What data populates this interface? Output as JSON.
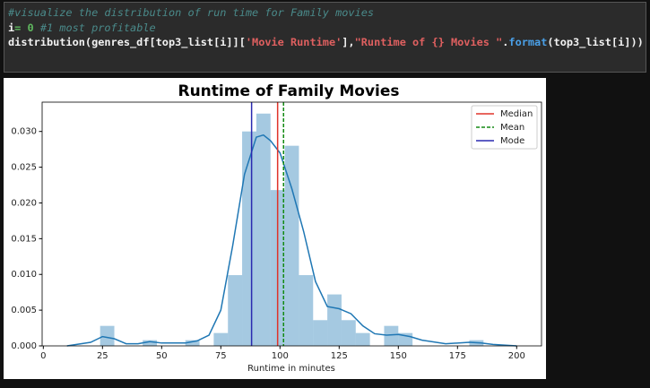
{
  "code": {
    "lines": [
      [
        "#visualize the distribution of run time for Family movies"
      ],
      [
        "i",
        "= 0",
        " #1 most profitable"
      ],
      [
        "distribution(genres_df[top3_list[i]][",
        "'Movie Runtime'",
        "],",
        "\"Runtime of {} Movies \"",
        ".",
        "format",
        "(top3_list[i]))"
      ]
    ]
  },
  "chart_data": {
    "type": "histogram",
    "title": "Runtime of Family Movies",
    "xlabel": "Runtime in minutes",
    "xlim": [
      -0.5,
      210.5
    ],
    "ylim": [
      0,
      0.0341
    ],
    "xticks": [
      0,
      25,
      50,
      75,
      100,
      125,
      150,
      175,
      200
    ],
    "yticks": [
      {
        "value": 0,
        "label": "0.000"
      },
      {
        "value": 0.005,
        "label": "0.005"
      },
      {
        "value": 0.01,
        "label": "0.010"
      },
      {
        "value": 0.015,
        "label": "0.015"
      },
      {
        "value": 0.02,
        "label": "0.020"
      },
      {
        "value": 0.025,
        "label": "0.025"
      },
      {
        "value": 0.03,
        "label": "0.030"
      }
    ],
    "histogram": {
      "color": "#1f77b4",
      "bins": [
        24,
        30,
        36,
        42,
        48,
        54,
        60,
        66,
        72,
        78,
        84,
        90,
        96,
        102,
        108,
        114,
        120,
        126,
        132,
        138,
        144,
        150,
        156,
        162,
        168,
        174,
        180,
        186
      ],
      "values": [
        0.0028,
        0,
        0,
        0.0008,
        0,
        0,
        0.0008,
        0,
        0.0018,
        0.0099,
        0.03,
        0.0325,
        0.0218,
        0.028,
        0.0099,
        0.0036,
        0.0072,
        0.0036,
        0.0018,
        0,
        0.0028,
        0.0018,
        0,
        0,
        0,
        0,
        0.0008
      ]
    },
    "kde": {
      "color": "#1f77b4",
      "x": [
        10,
        20,
        25,
        30,
        35,
        40,
        45,
        50,
        60,
        65,
        70,
        75,
        80,
        85,
        90,
        93,
        96,
        100,
        105,
        110,
        115,
        120,
        125,
        130,
        135,
        140,
        145,
        150,
        155,
        160,
        170,
        180,
        185,
        190,
        200
      ],
      "values": [
        0,
        0.0005,
        0.0013,
        0.001,
        0.0003,
        0.0003,
        0.0006,
        0.0004,
        0.0004,
        0.0007,
        0.0015,
        0.005,
        0.014,
        0.024,
        0.0292,
        0.0295,
        0.0287,
        0.027,
        0.022,
        0.016,
        0.009,
        0.0055,
        0.0052,
        0.0045,
        0.0028,
        0.0017,
        0.0015,
        0.0016,
        0.0013,
        0.0008,
        0.0003,
        0.0005,
        0.0004,
        0.0002,
        0
      ]
    },
    "lines": [
      {
        "name": "Median",
        "value": 99,
        "color": "#e0332a",
        "dash": false
      },
      {
        "name": "Mean",
        "value": 101.5,
        "color": "#138a13",
        "dash": true
      },
      {
        "name": "Mode",
        "value": 88,
        "color": "#2a2ab0",
        "dash": false
      }
    ],
    "legend": "upper right"
  }
}
